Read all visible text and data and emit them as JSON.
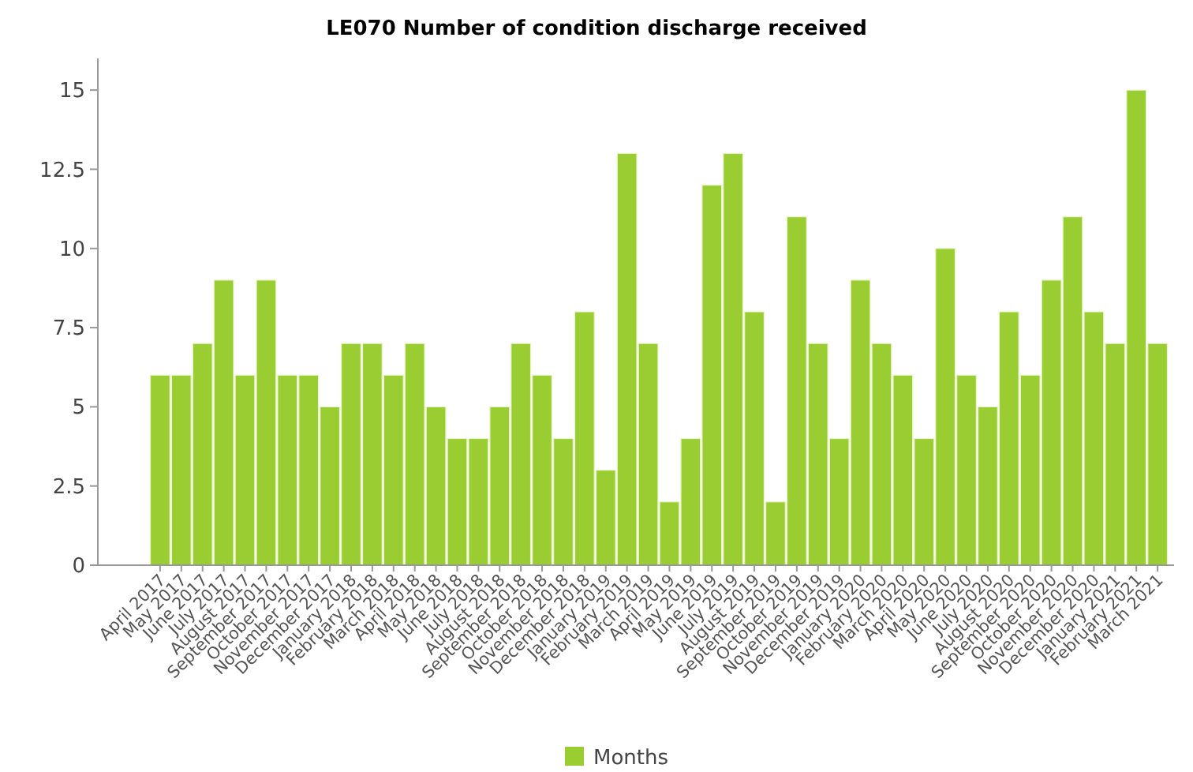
{
  "chart_data": {
    "type": "bar",
    "title": "LE070 Number of condition discharge received",
    "categories": [
      "April 2017",
      "May 2017",
      "June 2017",
      "July 2017",
      "August 2017",
      "September 2017",
      "October 2017",
      "November 2017",
      "December 2017",
      "January 2018",
      "February 2018",
      "March 2018",
      "April 2018",
      "May 2018",
      "June 2018",
      "July 2018",
      "August 2018",
      "September 2018",
      "October 2018",
      "November 2018",
      "December 2018",
      "January 2019",
      "February 2019",
      "March 2019",
      "April 2019",
      "May 2019",
      "June 2019",
      "July 2019",
      "August 2019",
      "September 2019",
      "October 2019",
      "November 2019",
      "December 2019",
      "January 2020",
      "February 2020",
      "March 2020",
      "April 2020",
      "May 2020",
      "June 2020",
      "July 2020",
      "August 2020",
      "September 2020",
      "October 2020",
      "November 2020",
      "December 2020",
      "January 2021",
      "February 2021",
      "March 2021"
    ],
    "series": [
      {
        "name": "Months",
        "color": "#9acd32",
        "values": [
          6,
          6,
          7,
          9,
          6,
          9,
          6,
          6,
          5,
          7,
          7,
          6,
          7,
          5,
          4,
          4,
          5,
          7,
          6,
          4,
          8,
          3,
          13,
          7,
          2,
          4,
          12,
          13,
          8,
          2,
          11,
          7,
          4,
          9,
          7,
          6,
          4,
          10,
          6,
          5,
          8,
          6,
          9,
          11,
          8,
          7,
          15,
          7
        ]
      }
    ],
    "ylim": [
      0,
      16
    ],
    "yticks": [
      0,
      2.5,
      5,
      7.5,
      10,
      12.5,
      15
    ],
    "grid": false,
    "legend": "bottom"
  }
}
